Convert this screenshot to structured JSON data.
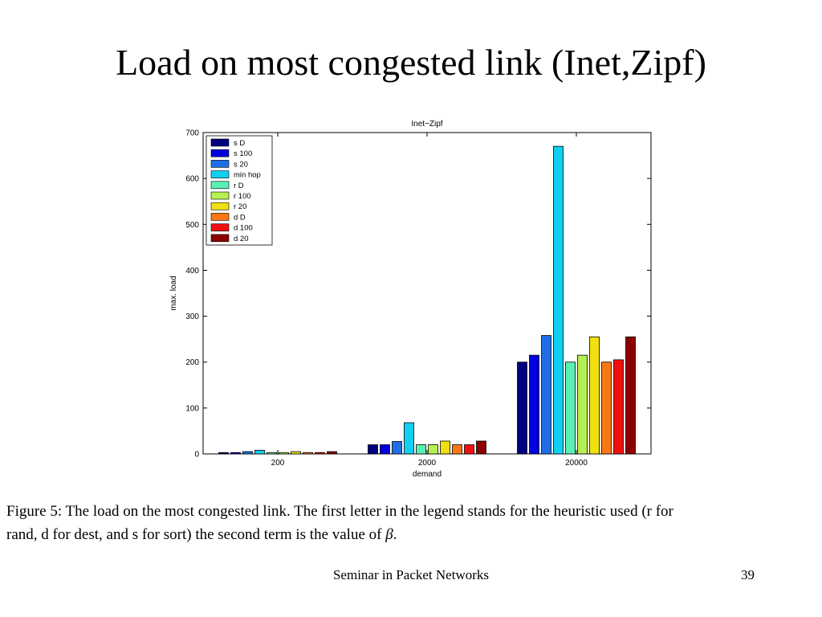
{
  "slide": {
    "title": "Load on most congested link (Inet,Zipf)",
    "caption_line1": "Figure 5: The load on the most congested link. The first letter in the legend stands for the heuristic used (r for",
    "caption_line2": "rand, d for dest, and s for sort) the second term is the value of ",
    "caption_beta": "β",
    "caption_end": ".",
    "footer": "Seminar in Packet Networks",
    "page_number": "39"
  },
  "chart_data": {
    "type": "bar",
    "title": "Inet−Zipf",
    "xlabel": "demand",
    "ylabel": "max. load",
    "ylim": [
      0,
      700
    ],
    "yticks": [
      0,
      100,
      200,
      300,
      400,
      500,
      600,
      700
    ],
    "categories": [
      "200",
      "2000",
      "20000"
    ],
    "legend_position": "top-left",
    "grid": false,
    "series": [
      {
        "name": "s D",
        "color": "#000080",
        "values": [
          3,
          20,
          200
        ]
      },
      {
        "name": "s 100",
        "color": "#0000dd",
        "values": [
          3,
          20,
          215
        ]
      },
      {
        "name": "s 20",
        "color": "#1e6ee6",
        "values": [
          5,
          27,
          258
        ]
      },
      {
        "name": "min hop",
        "color": "#10d0f0",
        "values": [
          8,
          68,
          670
        ]
      },
      {
        "name": "r D",
        "color": "#5af0b4",
        "values": [
          3,
          20,
          200
        ]
      },
      {
        "name": "r 100",
        "color": "#b4f050",
        "values": [
          3,
          20,
          215
        ]
      },
      {
        "name": "r 20",
        "color": "#f0e010",
        "values": [
          5,
          28,
          255
        ]
      },
      {
        "name": "d D",
        "color": "#fa7814",
        "values": [
          3,
          20,
          200
        ]
      },
      {
        "name": "d 100",
        "color": "#f01010",
        "values": [
          3,
          20,
          205
        ]
      },
      {
        "name": "d 20",
        "color": "#8c0000",
        "values": [
          5,
          28,
          255
        ]
      }
    ]
  }
}
